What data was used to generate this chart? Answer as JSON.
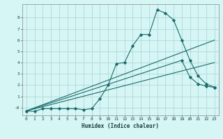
{
  "xlabel": "Humidex (Indice chaleur)",
  "bg_color": "#d6f5f5",
  "grid_color": "#b0d8d8",
  "line_color": "#1a6b6b",
  "xlim": [
    -0.5,
    23.5
  ],
  "ylim": [
    -0.7,
    9.2
  ],
  "yticks": [
    0,
    1,
    2,
    3,
    4,
    5,
    6,
    7,
    8
  ],
  "xticks": [
    0,
    1,
    2,
    3,
    4,
    5,
    6,
    7,
    8,
    9,
    10,
    11,
    12,
    13,
    14,
    15,
    16,
    17,
    18,
    19,
    20,
    21,
    22,
    23
  ],
  "line1_x": [
    0,
    1,
    2,
    3,
    4,
    5,
    6,
    7,
    8,
    9,
    10,
    11,
    12,
    13,
    14,
    15,
    16,
    17,
    18,
    19,
    20,
    21,
    22,
    23
  ],
  "line1_y": [
    -0.3,
    -0.35,
    -0.1,
    -0.1,
    -0.1,
    -0.1,
    -0.1,
    -0.2,
    -0.1,
    0.8,
    2.0,
    3.9,
    4.0,
    5.5,
    6.5,
    6.5,
    8.7,
    8.4,
    7.8,
    6.0,
    4.2,
    2.8,
    2.1,
    1.8
  ],
  "line2_x": [
    0,
    23
  ],
  "line2_y": [
    -0.3,
    6.0
  ],
  "line3_x": [
    0,
    23
  ],
  "line3_y": [
    -0.3,
    4.0
  ],
  "line4_x": [
    0,
    19,
    20,
    21,
    22,
    23
  ],
  "line4_y": [
    -0.3,
    4.2,
    2.7,
    2.1,
    1.9,
    1.8
  ]
}
